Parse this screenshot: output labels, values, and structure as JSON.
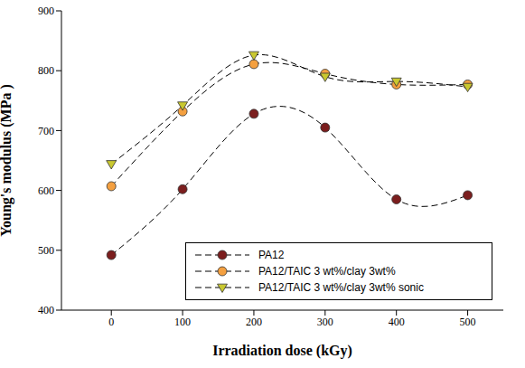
{
  "chart_data": {
    "type": "line",
    "x_label": "Irradiation dose (kGy)",
    "y_label": "Young's modulus (MPa )",
    "x": [
      0,
      100,
      200,
      300,
      400,
      500
    ],
    "xlim": [
      -70,
      550
    ],
    "xticks": [
      0,
      100,
      200,
      300,
      400,
      500
    ],
    "ylim": [
      400,
      900
    ],
    "yticks": [
      400,
      500,
      600,
      700,
      800,
      900
    ],
    "grid": false,
    "legend": "lower right",
    "series": [
      {
        "name": "PA12",
        "color": "#7b1e1e",
        "marker": "circle",
        "line_style": "dashed",
        "values": [
          492,
          602,
          728,
          705,
          585,
          592
        ]
      },
      {
        "name": "PA12/TAIC 3 wt%/clay 3wt%",
        "color": "#f4a040",
        "marker": "circle",
        "line_style": "dashed",
        "values": [
          607,
          732,
          811,
          795,
          777,
          777
        ]
      },
      {
        "name": "PA12/TAIC 3 wt%/clay 3wt% sonic",
        "color": "#c9c830",
        "marker": "triangle",
        "line_style": "dashed",
        "values": [
          644,
          742,
          826,
          790,
          782,
          773
        ]
      }
    ]
  }
}
